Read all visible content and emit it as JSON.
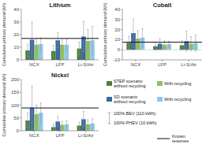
{
  "chart_data": [
    {
      "type": "bar",
      "title": "Lithium",
      "y_label": "Cumulative primary demand (Mt)",
      "categories": [
        "NCX",
        "LFP",
        "Li-S/Air"
      ],
      "series": [
        {
          "name": "STEP scenario\nwithout recycling",
          "color": "#4e7d3a",
          "values": [
            7.5,
            7.0,
            9.0
          ],
          "errors": [
            5.0,
            4.5,
            5.0
          ]
        },
        {
          "name": "SD scenario\nwithout recycling",
          "color": "#3a68a0",
          "values": [
            16.0,
            15.5,
            18.5
          ],
          "errors": [
            14.0,
            6.0,
            12.0
          ]
        },
        {
          "name": "With recycling",
          "color": "#90c060",
          "values": [
            12.0,
            12.0,
            15.0
          ],
          "errors": [
            5.0,
            4.0,
            9.0
          ]
        },
        {
          "name": "With recycling",
          "color": "#90c8e8",
          "values": [
            12.5,
            12.0,
            15.5
          ],
          "errors": [
            5.0,
            4.0,
            11.0
          ]
        }
      ],
      "known_reserves": 17,
      "ylim": [
        0,
        40
      ],
      "yticks": [
        0,
        10,
        20,
        30,
        40
      ],
      "grid": false,
      "legend": "lower right",
      "annotations": [
        "100% BEV (110 kWh)",
        "100% PHEV (10 kWh)",
        "Known\nreserves"
      ]
    },
    {
      "type": "bar",
      "title": "Cobalt",
      "y_label": "Cumulative primary demand (Mt)",
      "categories": [
        "NCX",
        "LFP",
        "Li-S/Air"
      ],
      "series": [
        {
          "name": "STEP scenario\nwithout recycling",
          "color": "#4e7d3a",
          "values": [
            7.0,
            3.5,
            4.5
          ],
          "errors": [
            6.0,
            4.0,
            4.5
          ]
        },
        {
          "name": "SD scenario\nwithout recycling",
          "color": "#3a68a0",
          "values": [
            16.5,
            6.0,
            8.5
          ],
          "errors": [
            14.0,
            5.0,
            10.0
          ]
        },
        {
          "name": "With recycling",
          "color": "#90c060",
          "values": [
            11.0,
            5.0,
            6.0
          ],
          "errors": [
            8.0,
            4.0,
            7.0
          ]
        },
        {
          "name": "With recycling",
          "color": "#90c8e8",
          "values": [
            12.0,
            5.5,
            6.5
          ],
          "errors": [
            9.0,
            3.0,
            8.0
          ]
        }
      ],
      "known_reserves": 7.5,
      "ylim": [
        -10,
        40
      ],
      "yticks": [
        -10,
        0,
        10,
        20,
        30,
        40
      ],
      "grid": false
    },
    {
      "type": "bar",
      "title": "Nickel",
      "y_label": "Cumulative primary demand (Mt)",
      "categories": [
        "NCX",
        "LFP",
        "Li-S/Air"
      ],
      "series": [
        {
          "name": "STEP scenario\nwithout recycling",
          "color": "#4e7d3a",
          "values": [
            40.0,
            14.0,
            20.0
          ],
          "errors": [
            30.0,
            10.0,
            14.0
          ]
        },
        {
          "name": "SD scenario\nwithout recycling",
          "color": "#3a68a0",
          "values": [
            90.0,
            36.0,
            45.0
          ],
          "errors": [
            85.0,
            20.0,
            30.0
          ]
        },
        {
          "name": "With recycling",
          "color": "#90c060",
          "values": [
            65.0,
            23.0,
            25.0
          ],
          "errors": [
            35.0,
            14.0,
            18.0
          ]
        },
        {
          "name": "With recycling",
          "color": "#90c8e8",
          "values": [
            70.0,
            25.0,
            28.0
          ],
          "errors": [
            38.0,
            14.0,
            20.0
          ]
        }
      ],
      "known_reserves": 89,
      "ylim": [
        0,
        200
      ],
      "yticks": [
        0,
        50,
        100,
        150,
        200
      ],
      "grid": false
    }
  ]
}
